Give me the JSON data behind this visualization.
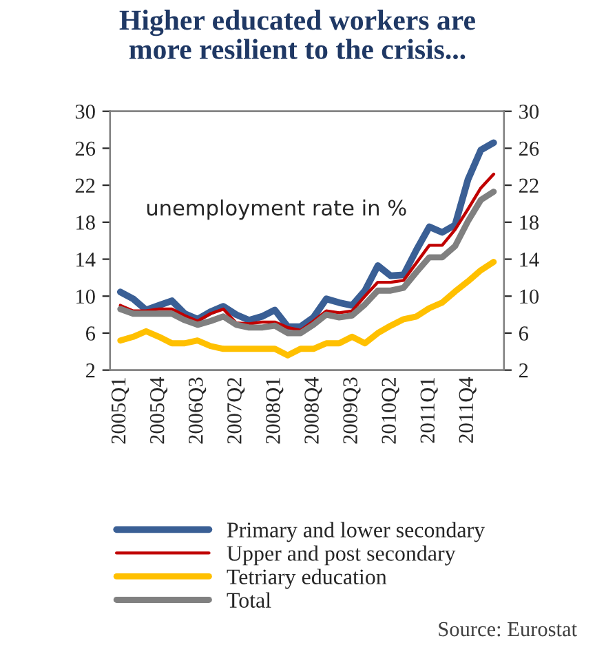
{
  "chart_data": {
    "type": "line",
    "title": "Higher educated workers are\nmore resilient to the crisis...",
    "categories": [
      "2005Q1",
      null,
      null,
      "2005Q4",
      null,
      null,
      "2006Q3",
      null,
      null,
      "2007Q2",
      null,
      null,
      "2008Q1",
      null,
      null,
      "2008Q4",
      null,
      null,
      "2009Q3",
      null,
      null,
      "2010Q2",
      null,
      null,
      "2011Q1",
      null,
      null,
      "2011Q4",
      null,
      null
    ],
    "series": [
      {
        "name": "Primary and lower secondary",
        "color": "#3a5f95",
        "values": [
          10.45,
          9.7,
          8.5,
          9.0,
          9.5,
          8.1,
          7.5,
          8.3,
          8.9,
          8.0,
          7.4,
          7.8,
          8.5,
          6.7,
          6.7,
          7.7,
          9.7,
          9.3,
          9.0,
          10.6,
          13.3,
          12.2,
          12.3,
          15.0,
          17.5,
          16.9,
          17.7,
          22.6,
          25.8,
          26.6
        ]
      },
      {
        "name": "Upper and post secondary",
        "color": "#c00000",
        "values": [
          9.0,
          8.4,
          8.4,
          8.6,
          8.6,
          7.9,
          7.3,
          8.1,
          8.6,
          7.1,
          7.0,
          7.2,
          7.2,
          6.6,
          6.3,
          7.3,
          8.4,
          8.2,
          8.4,
          10.0,
          11.5,
          11.5,
          11.7,
          13.6,
          15.5,
          15.5,
          17.2,
          19.4,
          21.7,
          23.2
        ]
      },
      {
        "name": "Tetriary education",
        "color": "#ffc000",
        "values": [
          5.2,
          5.6,
          6.2,
          5.6,
          4.9,
          4.9,
          5.2,
          4.6,
          4.3,
          4.3,
          4.3,
          4.3,
          4.3,
          3.6,
          4.3,
          4.3,
          4.9,
          4.9,
          5.6,
          4.9,
          6.0,
          6.8,
          7.5,
          7.8,
          8.7,
          9.3,
          10.5,
          11.6,
          12.8,
          13.7
        ]
      },
      {
        "name": "Total",
        "color": "#808080",
        "values": [
          8.6,
          8.1,
          8.1,
          8.1,
          8.1,
          7.4,
          6.9,
          7.3,
          7.8,
          6.9,
          6.6,
          6.6,
          6.8,
          6.0,
          6.0,
          6.9,
          8.0,
          7.7,
          7.9,
          9.1,
          10.6,
          10.6,
          10.9,
          12.6,
          14.2,
          14.2,
          15.4,
          18.1,
          20.4,
          21.3
        ]
      }
    ],
    "ylim": [
      2,
      30
    ],
    "yticks": [
      2,
      6,
      10,
      14,
      18,
      22,
      26,
      30
    ],
    "y2lim": [
      2,
      30
    ],
    "y2ticks": [
      2,
      6,
      10,
      14,
      18,
      22,
      26,
      30
    ],
    "grid": false,
    "legend": "bottom",
    "annotations": [
      "unemployment rate in %",
      "Source: Eurostat"
    ]
  }
}
